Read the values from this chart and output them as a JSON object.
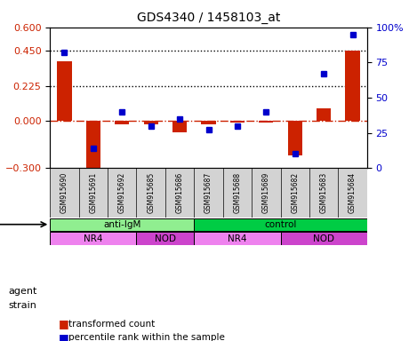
{
  "title": "GDS4340 / 1458103_at",
  "samples": [
    "GSM915690",
    "GSM915691",
    "GSM915692",
    "GSM915685",
    "GSM915686",
    "GSM915687",
    "GSM915688",
    "GSM915689",
    "GSM915682",
    "GSM915683",
    "GSM915684"
  ],
  "transformed_count": [
    0.38,
    -0.35,
    -0.02,
    -0.02,
    -0.07,
    -0.02,
    -0.01,
    -0.01,
    -0.22,
    0.08,
    0.45
  ],
  "percentile_rank": [
    82,
    14,
    40,
    30,
    35,
    27,
    30,
    40,
    10,
    67,
    95
  ],
  "ylim_left": [
    -0.3,
    0.6
  ],
  "ylim_right": [
    0,
    100
  ],
  "yticks_left": [
    -0.3,
    0,
    0.225,
    0.45,
    0.6
  ],
  "yticks_right": [
    0,
    25,
    50,
    75,
    100
  ],
  "hlines": [
    0.45,
    0.225
  ],
  "agent_groups": [
    {
      "label": "anti-IgM",
      "start": 0,
      "end": 5,
      "color": "#90EE90"
    },
    {
      "label": "control",
      "start": 5,
      "end": 11,
      "color": "#00CC44"
    }
  ],
  "strain_groups": [
    {
      "label": "NR4",
      "start": 0,
      "end": 3,
      "color": "#EE82EE"
    },
    {
      "label": "NOD",
      "start": 3,
      "end": 5,
      "color": "#CC44CC"
    },
    {
      "label": "NR4",
      "start": 5,
      "end": 8,
      "color": "#EE82EE"
    },
    {
      "label": "NOD",
      "start": 8,
      "end": 11,
      "color": "#CC44CC"
    }
  ],
  "bar_color": "#CC2200",
  "dot_color": "#0000CC",
  "zero_line_color": "#CC2200",
  "background_color": "#FFFFFF"
}
